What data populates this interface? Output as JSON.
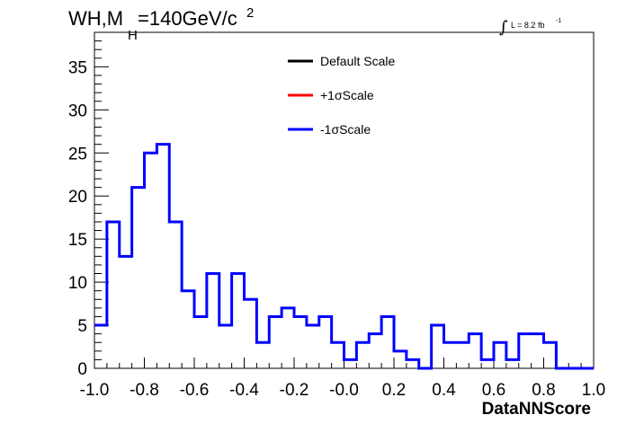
{
  "chart_data": {
    "type": "histogram",
    "title_main": "WH,M",
    "title_sub": "H",
    "title_rest": "=140GeV/c",
    "title_sup": "2",
    "luminosity": {
      "integral_symbol": "∫",
      "text": "L = 8.2 fb",
      "sup": "-1"
    },
    "xlabel": "DataNNScore",
    "ylabel": "",
    "xlim": [
      -1.0,
      1.0
    ],
    "ylim": [
      0,
      39
    ],
    "x_ticks": [
      "-1.0",
      "-0.8",
      "-0.6",
      "-0.4",
      "-0.2",
      "-0.0",
      "0.2",
      "0.4",
      "0.6",
      "0.8",
      "1.0"
    ],
    "x_tick_values": [
      -1.0,
      -0.8,
      -0.6,
      -0.4,
      -0.2,
      0.0,
      0.2,
      0.4,
      0.6,
      0.8,
      1.0
    ],
    "y_ticks": [
      "0",
      "5",
      "10",
      "15",
      "20",
      "25",
      "30",
      "35"
    ],
    "y_tick_values": [
      0,
      5,
      10,
      15,
      20,
      25,
      30,
      35
    ],
    "bin_edges_start": -1.0,
    "bin_width": 0.05,
    "legend": [
      {
        "label": "Default Scale",
        "color": "#000000"
      },
      {
        "label": "+1σScale",
        "color": "#ff0000"
      },
      {
        "label": "-1σScale",
        "color": "#0000ff"
      }
    ],
    "series": [
      {
        "name": "-1σScale",
        "color": "#0000ff",
        "values": [
          5,
          17,
          13,
          21,
          25,
          26,
          17,
          9,
          6,
          11,
          5,
          11,
          8,
          3,
          6,
          7,
          6,
          5,
          6,
          3,
          1,
          3,
          4,
          6,
          2,
          1,
          0,
          5,
          3,
          3,
          4,
          1,
          3,
          1,
          4,
          4,
          3,
          0,
          0,
          0
        ]
      }
    ]
  }
}
